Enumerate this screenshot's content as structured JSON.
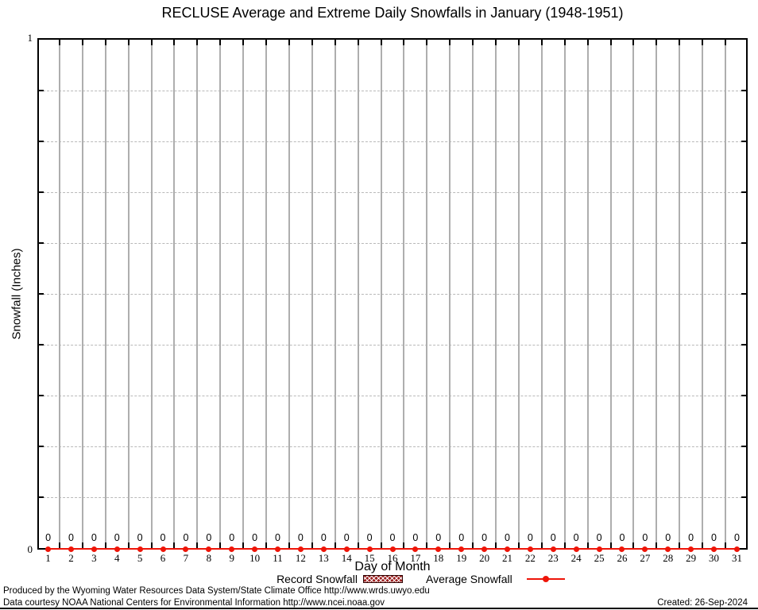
{
  "title": "RECLUSE Average and Extreme Daily Snowfalls in January (1948-1951)",
  "y_axis": {
    "label": "Snowfall (Inches)",
    "top_tick": "1",
    "bottom_tick": "0"
  },
  "x_axis": {
    "label": "Day of Month"
  },
  "legend": {
    "record_label": "Record Snowfall",
    "average_label": "Average Snowfall"
  },
  "footer": {
    "line1": "Produced by the Wyoming Water Resources Data System/State Climate Office http://www.wrds.uwyo.edu",
    "line2": "Data courtesy NOAA National Centers for Environmental Information http://www.ncei.noaa.gov",
    "created": "Created: 26-Sep-2024"
  },
  "colors": {
    "average_series": "#ee1509",
    "record_fill": "#9c2020",
    "record_border": "#2e0404",
    "grid_vertical": "#aeaeae",
    "grid_horizontal_dashed": "#b9b9b9",
    "axis": "#000000"
  },
  "chart_data": {
    "type": "line",
    "title": "RECLUSE Average and Extreme Daily Snowfalls in January (1948-1951)",
    "xlabel": "Day of Month",
    "ylabel": "Snowfall (Inches)",
    "x": [
      1,
      2,
      3,
      4,
      5,
      6,
      7,
      8,
      9,
      10,
      11,
      12,
      13,
      14,
      15,
      16,
      17,
      18,
      19,
      20,
      21,
      22,
      23,
      24,
      25,
      26,
      27,
      28,
      29,
      30,
      31
    ],
    "series": [
      {
        "name": "Record Snowfall",
        "style": "hatched-bar",
        "values": [
          0,
          0,
          0,
          0,
          0,
          0,
          0,
          0,
          0,
          0,
          0,
          0,
          0,
          0,
          0,
          0,
          0,
          0,
          0,
          0,
          0,
          0,
          0,
          0,
          0,
          0,
          0,
          0,
          0,
          0,
          0
        ]
      },
      {
        "name": "Average Snowfall",
        "style": "line-with-points",
        "values": [
          0,
          0,
          0,
          0,
          0,
          0,
          0,
          0,
          0,
          0,
          0,
          0,
          0,
          0,
          0,
          0,
          0,
          0,
          0,
          0,
          0,
          0,
          0,
          0,
          0,
          0,
          0,
          0,
          0,
          0,
          0
        ]
      }
    ],
    "point_labels": [
      "0",
      "0",
      "0",
      "0",
      "0",
      "0",
      "0",
      "0",
      "0",
      "0",
      "0",
      "0",
      "0",
      "0",
      "0",
      "0",
      "0",
      "0",
      "0",
      "0",
      "0",
      "0",
      "0",
      "0",
      "0",
      "0",
      "0",
      "0",
      "0",
      "0",
      "0"
    ],
    "ylim": [
      0,
      1
    ],
    "xlim": [
      0.6,
      31.4
    ],
    "y_major_tick_labels": [
      "0",
      "1"
    ],
    "y_minor_tick_step": 0.1,
    "x_grid_boundaries_start": 1.5,
    "x_grid_boundaries_end": 30.5,
    "grid": true,
    "legend_position": "bottom-center"
  }
}
